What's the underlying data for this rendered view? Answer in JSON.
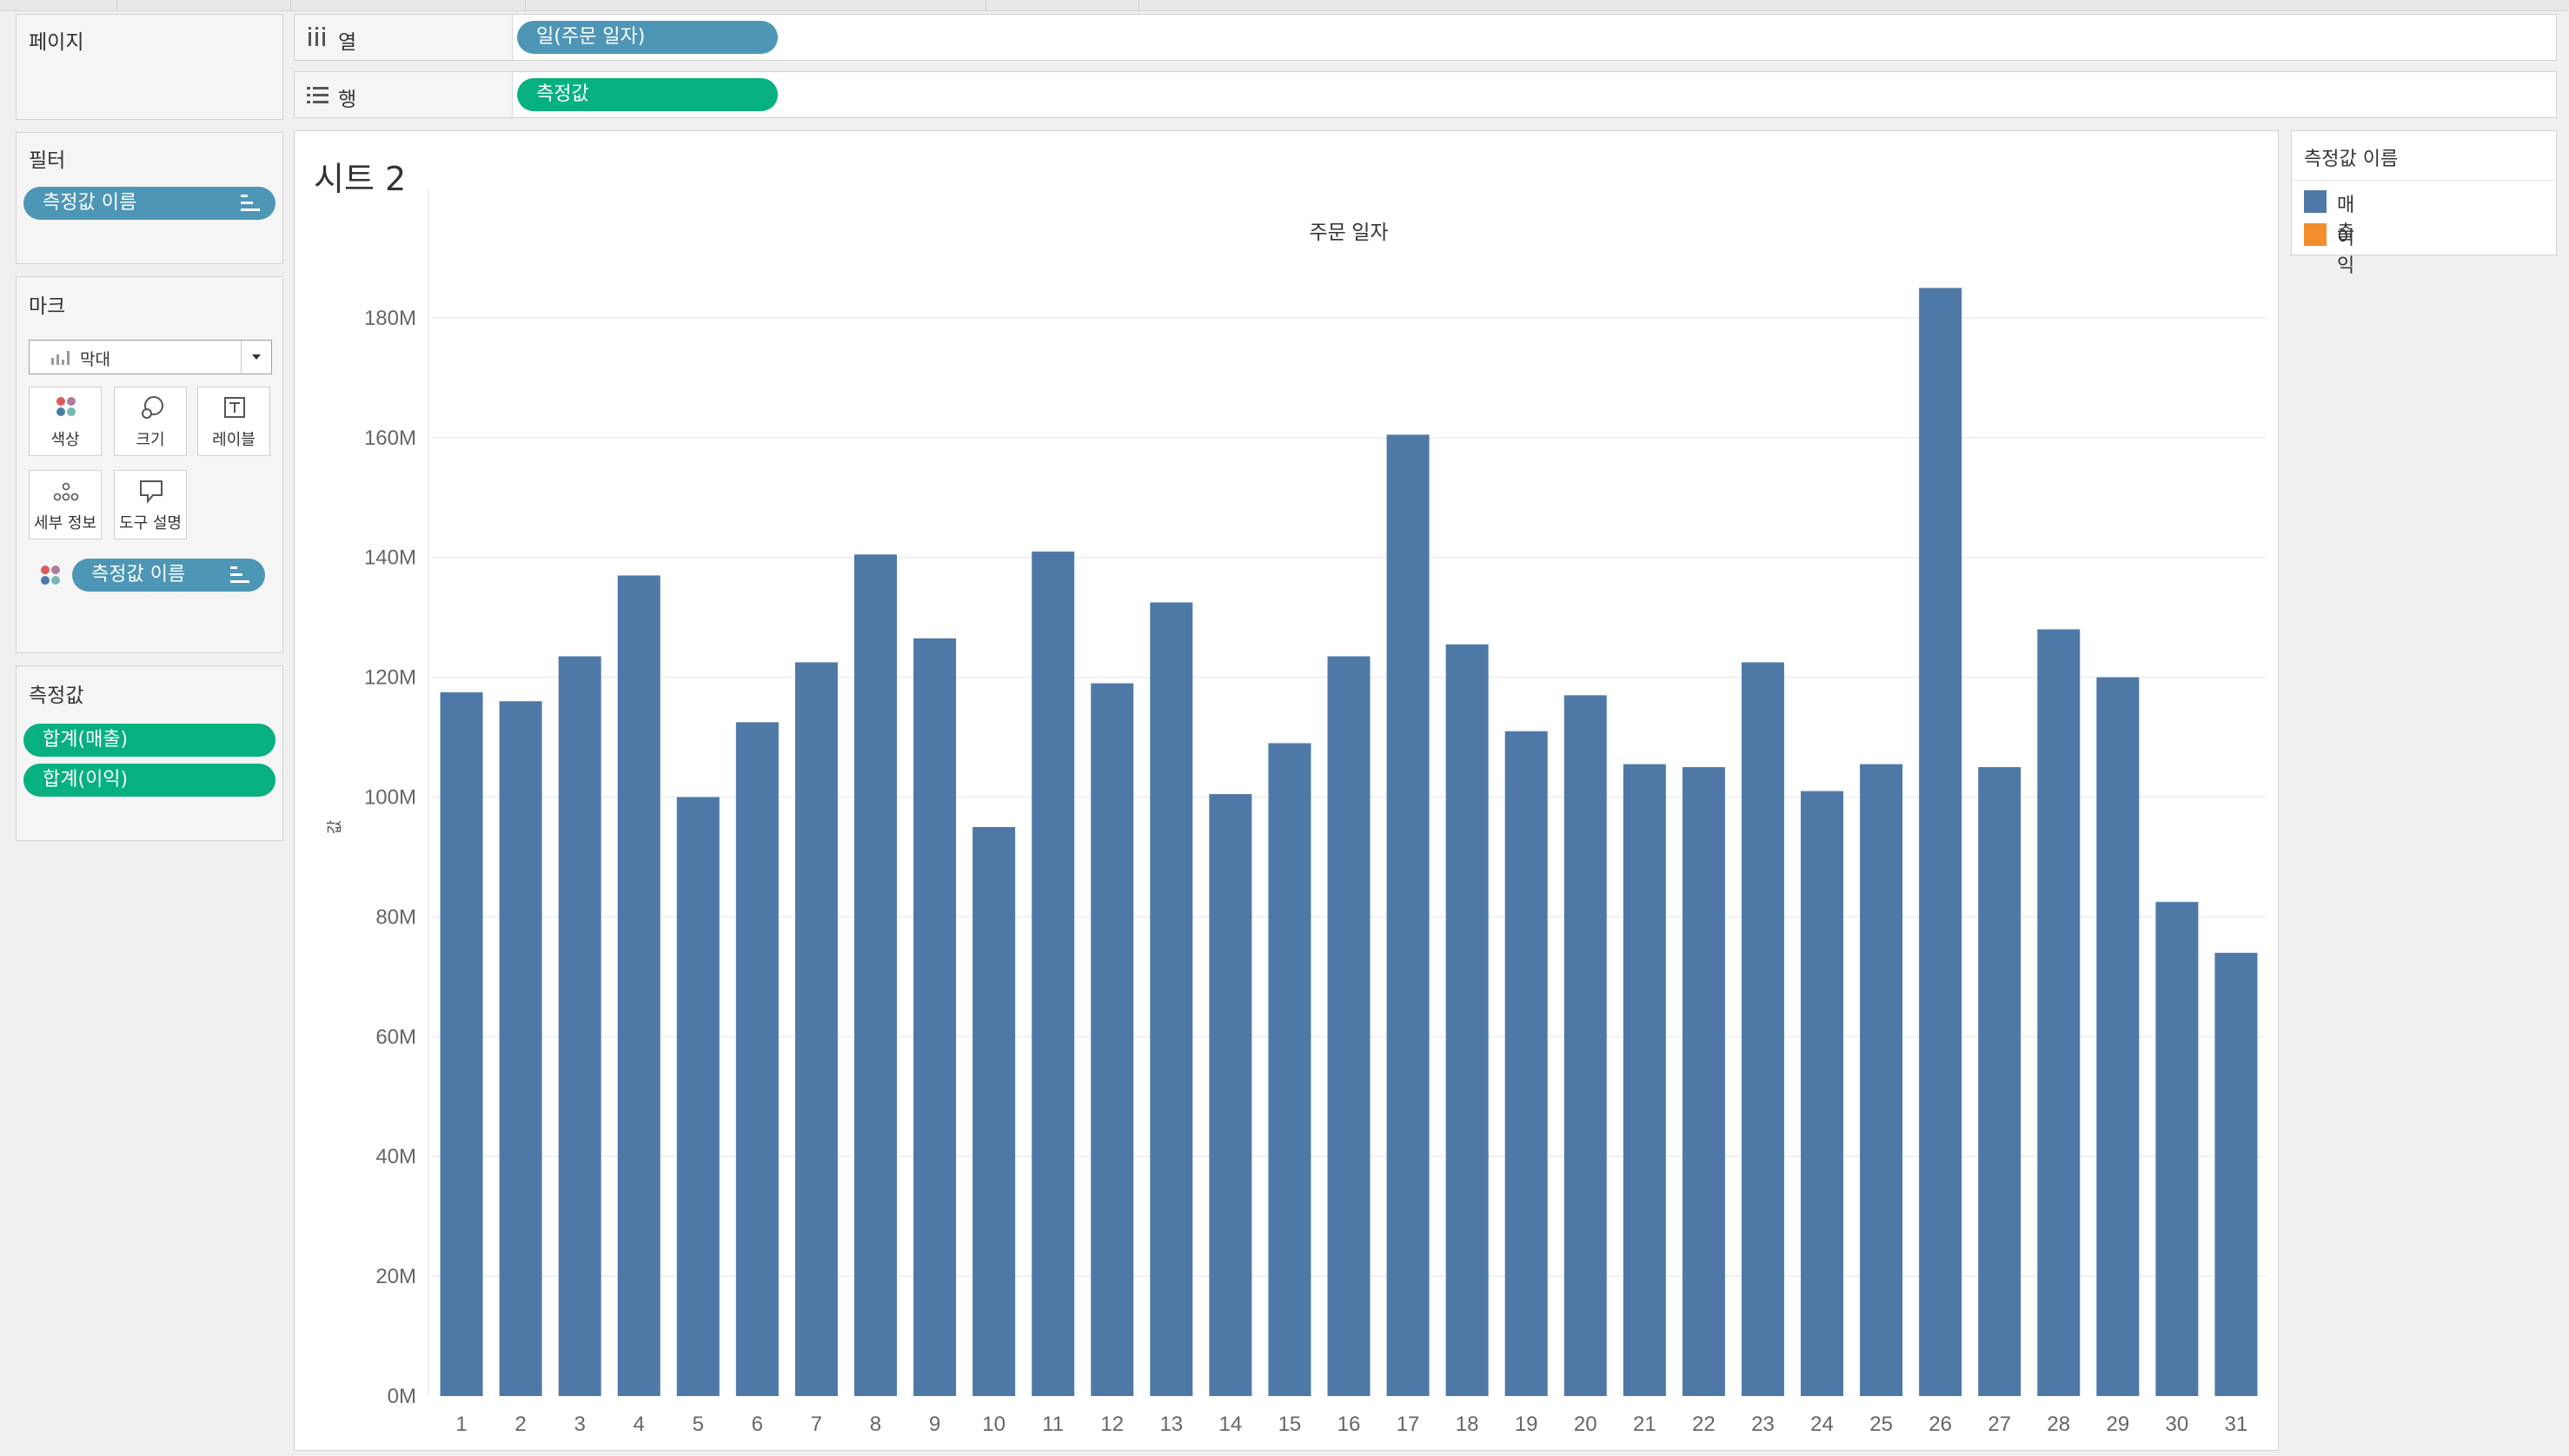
{
  "shelves": {
    "pages_label": "페이지",
    "columns": {
      "label": "열",
      "pill": "일(주문 일자)"
    },
    "rows": {
      "label": "행",
      "pill": "측정값"
    }
  },
  "filters": {
    "title": "필터",
    "pill": "측정값 이름"
  },
  "marks": {
    "title": "마크",
    "type": "막대",
    "buttons": [
      {
        "label": "색상",
        "icon": "color-icon"
      },
      {
        "label": "크기",
        "icon": "size-icon"
      },
      {
        "label": "레이블",
        "icon": "label-icon"
      },
      {
        "label": "세부 정보",
        "icon": "detail-icon"
      },
      {
        "label": "도구 설명",
        "icon": "tooltip-icon"
      }
    ],
    "color_pill": "측정값 이름"
  },
  "measures": {
    "title": "측정값",
    "pills": [
      "합계(매출)",
      "합계(이익)"
    ]
  },
  "sheet": {
    "title": "시트 2"
  },
  "legend": {
    "title": "측정값 이름",
    "items": [
      {
        "name": "매출",
        "color": "#4e79a7"
      },
      {
        "name": "이익",
        "color": "#f28e2b"
      }
    ]
  },
  "chart_data": {
    "type": "bar",
    "title": "주문 일자",
    "xlabel": "",
    "ylabel": "값",
    "categories": [
      "1",
      "2",
      "3",
      "4",
      "5",
      "6",
      "7",
      "8",
      "9",
      "10",
      "11",
      "12",
      "13",
      "14",
      "15",
      "16",
      "17",
      "18",
      "19",
      "20",
      "21",
      "22",
      "23",
      "24",
      "25",
      "26",
      "27",
      "28",
      "29",
      "30",
      "31"
    ],
    "series": [
      {
        "name": "매출",
        "color": "#4e79a7",
        "values": [
          117.5,
          116,
          123.5,
          137,
          100,
          112.5,
          122.5,
          140.5,
          126.5,
          95,
          141,
          119,
          132.5,
          100.5,
          109,
          123.5,
          160.5,
          125.5,
          111,
          117,
          105.5,
          105,
          122.5,
          101,
          105.5,
          185,
          105,
          128,
          120,
          82.5,
          74
        ]
      }
    ],
    "ylim": [
      0,
      190
    ],
    "yticks": [
      0,
      20,
      40,
      60,
      80,
      100,
      120,
      140,
      160,
      180
    ],
    "ytick_labels": [
      "0M",
      "20M",
      "40M",
      "60M",
      "80M",
      "100M",
      "120M",
      "140M",
      "160M",
      "180M"
    ],
    "grid": true
  }
}
